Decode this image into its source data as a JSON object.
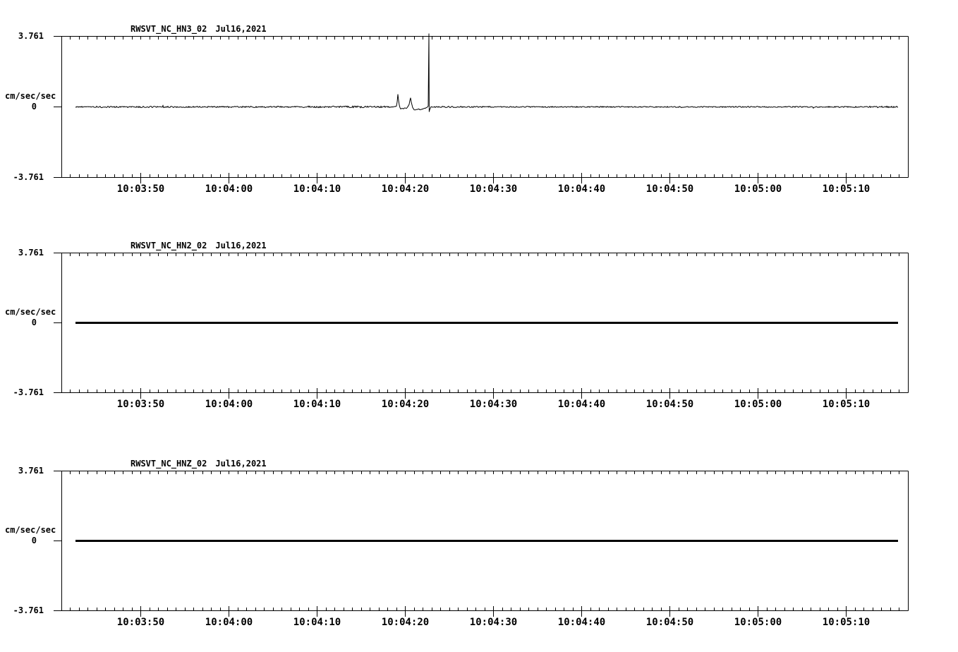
{
  "colors": {
    "background": "#ffffff",
    "ink": "#000000"
  },
  "chart_data": [
    {
      "type": "line",
      "station_channel": "RWSVT_NC_HN3_02",
      "date": "Jul16,2021",
      "ylabel": "cm/sec/sec",
      "y_tick_labels": [
        "3.761",
        "0",
        "-3.761"
      ],
      "ylim": [
        -3.761,
        3.761
      ],
      "x_tick_labels": [
        "10:03:50",
        "10:04:00",
        "10:04:10",
        "10:04:20",
        "10:04:30",
        "10:04:40",
        "10:04:50",
        "10:05:00",
        "10:05:10"
      ],
      "x_minor_step_sec": 1,
      "x_major_step_sec": 10,
      "x_range_approx": [
        "10:03:41",
        "10:05:17"
      ],
      "baseline": 0,
      "noise_band_units": 0.04,
      "series_description": "near-flat noisy accelerogram at zero with transient burst",
      "events": [
        {
          "time": "10:04:19.4",
          "amplitude": 0.67,
          "note": "small sharp transient"
        },
        {
          "time": "10:04:20.9",
          "amplitude": 0.49,
          "note": "small sharp transient with slight negative offset after"
        },
        {
          "time": "10:04:22.7",
          "amplitude": 3.9,
          "note": "large spike clipped at top of frame, undershoot -0.26"
        }
      ]
    },
    {
      "type": "line",
      "station_channel": "RWSVT_NC_HN2_02",
      "date": "Jul16,2021",
      "ylabel": "cm/sec/sec",
      "y_tick_labels": [
        "3.761",
        "0",
        "-3.761"
      ],
      "ylim": [
        -3.761,
        3.761
      ],
      "x_tick_labels": [
        "10:03:50",
        "10:04:00",
        "10:04:10",
        "10:04:20",
        "10:04:30",
        "10:04:40",
        "10:04:50",
        "10:05:00",
        "10:05:10"
      ],
      "x_minor_step_sec": 1,
      "x_major_step_sec": 10,
      "x_range_approx": [
        "10:03:41",
        "10:05:17"
      ],
      "baseline": 0,
      "series_description": "flat thick trace at zero for full duration",
      "events": []
    },
    {
      "type": "line",
      "station_channel": "RWSVT_NC_HNZ_02",
      "date": "Jul16,2021",
      "ylabel": "cm/sec/sec",
      "y_tick_labels": [
        "3.761",
        "0",
        "-3.761"
      ],
      "ylim": [
        -3.761,
        3.761
      ],
      "x_tick_labels": [
        "10:03:50",
        "10:04:00",
        "10:04:10",
        "10:04:20",
        "10:04:30",
        "10:04:40",
        "10:04:50",
        "10:05:00",
        "10:05:10"
      ],
      "x_minor_step_sec": 1,
      "x_major_step_sec": 10,
      "x_range_approx": [
        "10:03:41",
        "10:05:17"
      ],
      "baseline": 0,
      "series_description": "flat thick trace at zero for full duration",
      "events": []
    }
  ]
}
